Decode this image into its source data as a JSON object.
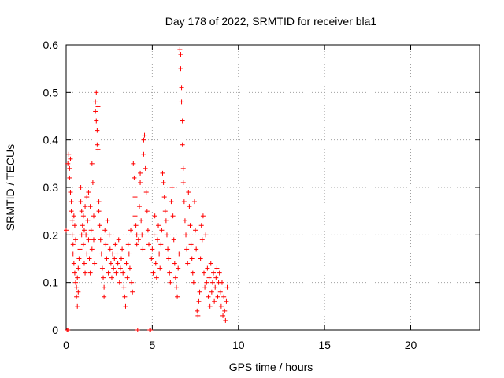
{
  "chart_data": {
    "type": "scatter",
    "title": "Day 178 of 2022, SRMTID for receiver bla1",
    "xlabel": "GPS time / hours",
    "ylabel": "SRMTID / TECUs",
    "xlim": [
      0,
      24
    ],
    "ylim": [
      0,
      0.6
    ],
    "xticks": [
      0,
      5,
      10,
      15,
      20
    ],
    "xtick_labels": [
      "0",
      "5",
      "10",
      "15",
      "20"
    ],
    "yticks": [
      0,
      0.1,
      0.2,
      0.3,
      0.4,
      0.5,
      0.6
    ],
    "ytick_labels": [
      "0",
      "0.1",
      "0.2",
      "0.3",
      "0.4",
      "0.5",
      "0.6"
    ],
    "grid": true,
    "marker": "+",
    "colors": {
      "series": "#ff0000",
      "grid": "#a0a0a0",
      "axis": "#000000"
    },
    "series": [
      {
        "name": "SRMTID",
        "points": [
          [
            0.0,
            0.21
          ],
          [
            0.05,
            0.0
          ],
          [
            0.1,
            0.0
          ],
          [
            0.1,
            0.35
          ],
          [
            0.15,
            0.37
          ],
          [
            0.2,
            0.34
          ],
          [
            0.2,
            0.32
          ],
          [
            0.25,
            0.36
          ],
          [
            0.25,
            0.29
          ],
          [
            0.3,
            0.27
          ],
          [
            0.3,
            0.25
          ],
          [
            0.35,
            0.23
          ],
          [
            0.35,
            0.2
          ],
          [
            0.4,
            0.18
          ],
          [
            0.4,
            0.16
          ],
          [
            0.45,
            0.24
          ],
          [
            0.45,
            0.14
          ],
          [
            0.5,
            0.22
          ],
          [
            0.5,
            0.12
          ],
          [
            0.55,
            0.19
          ],
          [
            0.55,
            0.1
          ],
          [
            0.6,
            0.09
          ],
          [
            0.6,
            0.07
          ],
          [
            0.65,
            0.05
          ],
          [
            0.65,
            0.11
          ],
          [
            0.7,
            0.08
          ],
          [
            0.7,
            0.13
          ],
          [
            0.75,
            0.15
          ],
          [
            0.8,
            0.17
          ],
          [
            0.85,
            0.27
          ],
          [
            0.85,
            0.3
          ],
          [
            0.9,
            0.25
          ],
          [
            0.9,
            0.2
          ],
          [
            0.95,
            0.22
          ],
          [
            1.0,
            0.18
          ],
          [
            1.0,
            0.24
          ],
          [
            1.05,
            0.21
          ],
          [
            1.05,
            0.14
          ],
          [
            1.1,
            0.26
          ],
          [
            1.1,
            0.12
          ],
          [
            1.15,
            0.2
          ],
          [
            1.2,
            0.28
          ],
          [
            1.2,
            0.16
          ],
          [
            1.25,
            0.23
          ],
          [
            1.3,
            0.19
          ],
          [
            1.3,
            0.29
          ],
          [
            1.35,
            0.15
          ],
          [
            1.4,
            0.26
          ],
          [
            1.4,
            0.12
          ],
          [
            1.45,
            0.21
          ],
          [
            1.5,
            0.35
          ],
          [
            1.5,
            0.17
          ],
          [
            1.55,
            0.31
          ],
          [
            1.6,
            0.24
          ],
          [
            1.6,
            0.19
          ],
          [
            1.65,
            0.14
          ],
          [
            1.7,
            0.46
          ],
          [
            1.7,
            0.48
          ],
          [
            1.75,
            0.44
          ],
          [
            1.75,
            0.5
          ],
          [
            1.8,
            0.42
          ],
          [
            1.8,
            0.39
          ],
          [
            1.85,
            0.38
          ],
          [
            1.85,
            0.47
          ],
          [
            1.9,
            0.27
          ],
          [
            1.9,
            0.25
          ],
          [
            1.95,
            0.22
          ],
          [
            2.0,
            0.19
          ],
          [
            2.05,
            0.16
          ],
          [
            2.1,
            0.13
          ],
          [
            2.15,
            0.11
          ],
          [
            2.2,
            0.09
          ],
          [
            2.2,
            0.07
          ],
          [
            2.25,
            0.21
          ],
          [
            2.3,
            0.18
          ],
          [
            2.35,
            0.15
          ],
          [
            2.4,
            0.23
          ],
          [
            2.45,
            0.12
          ],
          [
            2.5,
            0.2
          ],
          [
            2.55,
            0.17
          ],
          [
            2.6,
            0.14
          ],
          [
            2.65,
            0.11
          ],
          [
            2.7,
            0.16
          ],
          [
            2.75,
            0.13
          ],
          [
            2.8,
            0.15
          ],
          [
            2.85,
            0.18
          ],
          [
            2.9,
            0.12
          ],
          [
            2.95,
            0.16
          ],
          [
            3.0,
            0.14
          ],
          [
            3.05,
            0.19
          ],
          [
            3.1,
            0.1
          ],
          [
            3.15,
            0.13
          ],
          [
            3.2,
            0.15
          ],
          [
            3.25,
            0.17
          ],
          [
            3.3,
            0.12
          ],
          [
            3.35,
            0.09
          ],
          [
            3.4,
            0.07
          ],
          [
            3.45,
            0.05
          ],
          [
            3.5,
            0.14
          ],
          [
            3.55,
            0.11
          ],
          [
            3.6,
            0.18
          ],
          [
            3.65,
            0.16
          ],
          [
            3.7,
            0.13
          ],
          [
            3.75,
            0.21
          ],
          [
            3.8,
            0.1
          ],
          [
            3.85,
            0.08
          ],
          [
            3.9,
            0.35
          ],
          [
            3.95,
            0.32
          ],
          [
            4.0,
            0.28
          ],
          [
            4.0,
            0.24
          ],
          [
            4.05,
            0.22
          ],
          [
            4.1,
            0.2
          ],
          [
            4.1,
            0.18
          ],
          [
            4.15,
            0.0
          ],
          [
            4.2,
            0.19
          ],
          [
            4.25,
            0.26
          ],
          [
            4.3,
            0.31
          ],
          [
            4.3,
            0.33
          ],
          [
            4.35,
            0.23
          ],
          [
            4.4,
            0.2
          ],
          [
            4.45,
            0.17
          ],
          [
            4.5,
            0.4
          ],
          [
            4.5,
            0.37
          ],
          [
            4.55,
            0.41
          ],
          [
            4.6,
            0.34
          ],
          [
            4.65,
            0.29
          ],
          [
            4.7,
            0.25
          ],
          [
            4.75,
            0.21
          ],
          [
            4.8,
            0.18
          ],
          [
            4.85,
            0.0
          ],
          [
            4.9,
            0.0
          ],
          [
            4.95,
            0.15
          ],
          [
            5.0,
            0.17
          ],
          [
            5.05,
            0.12
          ],
          [
            5.1,
            0.2
          ],
          [
            5.15,
            0.24
          ],
          [
            5.2,
            0.14
          ],
          [
            5.25,
            0.11
          ],
          [
            5.3,
            0.19
          ],
          [
            5.35,
            0.22
          ],
          [
            5.4,
            0.16
          ],
          [
            5.45,
            0.13
          ],
          [
            5.5,
            0.18
          ],
          [
            5.55,
            0.21
          ],
          [
            5.6,
            0.33
          ],
          [
            5.65,
            0.31
          ],
          [
            5.7,
            0.28
          ],
          [
            5.75,
            0.25
          ],
          [
            5.8,
            0.23
          ],
          [
            5.85,
            0.2
          ],
          [
            5.9,
            0.17
          ],
          [
            5.95,
            0.15
          ],
          [
            6.0,
            0.12
          ],
          [
            6.05,
            0.1
          ],
          [
            6.1,
            0.27
          ],
          [
            6.15,
            0.3
          ],
          [
            6.2,
            0.24
          ],
          [
            6.25,
            0.19
          ],
          [
            6.3,
            0.14
          ],
          [
            6.35,
            0.11
          ],
          [
            6.4,
            0.09
          ],
          [
            6.45,
            0.07
          ],
          [
            6.5,
            0.13
          ],
          [
            6.55,
            0.16
          ],
          [
            6.6,
            0.59
          ],
          [
            6.65,
            0.58
          ],
          [
            6.65,
            0.55
          ],
          [
            6.7,
            0.51
          ],
          [
            6.7,
            0.48
          ],
          [
            6.75,
            0.44
          ],
          [
            6.75,
            0.39
          ],
          [
            6.8,
            0.34
          ],
          [
            6.8,
            0.31
          ],
          [
            6.85,
            0.27
          ],
          [
            6.9,
            0.23
          ],
          [
            6.95,
            0.2
          ],
          [
            7.0,
            0.17
          ],
          [
            7.05,
            0.14
          ],
          [
            7.1,
            0.29
          ],
          [
            7.15,
            0.26
          ],
          [
            7.2,
            0.22
          ],
          [
            7.25,
            0.18
          ],
          [
            7.3,
            0.15
          ],
          [
            7.35,
            0.12
          ],
          [
            7.4,
            0.1
          ],
          [
            7.45,
            0.27
          ],
          [
            7.5,
            0.21
          ],
          [
            7.55,
            0.17
          ],
          [
            7.6,
            0.04
          ],
          [
            7.65,
            0.03
          ],
          [
            7.7,
            0.06
          ],
          [
            7.75,
            0.08
          ],
          [
            7.8,
            0.15
          ],
          [
            7.85,
            0.22
          ],
          [
            7.9,
            0.19
          ],
          [
            7.95,
            0.24
          ],
          [
            8.0,
            0.12
          ],
          [
            8.05,
            0.09
          ],
          [
            8.1,
            0.2
          ],
          [
            8.15,
            0.1
          ],
          [
            8.2,
            0.13
          ],
          [
            8.25,
            0.07
          ],
          [
            8.3,
            0.11
          ],
          [
            8.35,
            0.05
          ],
          [
            8.4,
            0.14
          ],
          [
            8.45,
            0.08
          ],
          [
            8.5,
            0.1
          ],
          [
            8.55,
            0.12
          ],
          [
            8.6,
            0.06
          ],
          [
            8.65,
            0.09
          ],
          [
            8.7,
            0.11
          ],
          [
            8.75,
            0.13
          ],
          [
            8.8,
            0.07
          ],
          [
            8.85,
            0.1
          ],
          [
            8.9,
            0.12
          ],
          [
            8.95,
            0.08
          ],
          [
            9.0,
            0.05
          ],
          [
            9.05,
            0.1
          ],
          [
            9.1,
            0.03
          ],
          [
            9.15,
            0.07
          ],
          [
            9.2,
            0.04
          ],
          [
            9.25,
            0.02
          ],
          [
            9.3,
            0.06
          ],
          [
            9.35,
            0.09
          ]
        ]
      }
    ]
  }
}
